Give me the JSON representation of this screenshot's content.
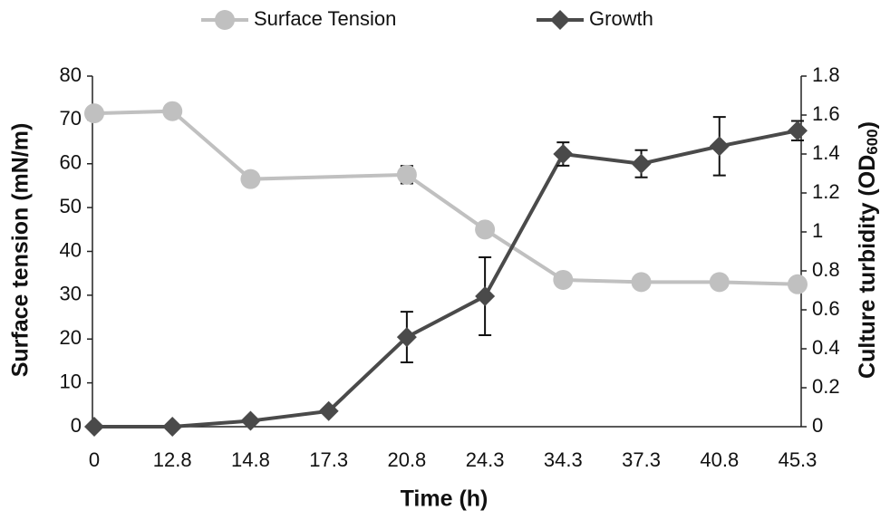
{
  "chart_data": {
    "type": "line",
    "xlabel": "Time (h)",
    "ylabel": "Surface tension (mN/m)",
    "y2label_parts": [
      "Culture turbidity (OD",
      "600",
      ")"
    ],
    "categories": [
      "0",
      "12.8",
      "14.8",
      "17.3",
      "20.8",
      "24.3",
      "34.3",
      "37.3",
      "40.8",
      "45.3"
    ],
    "series": [
      {
        "name": "Surface Tension",
        "color": "#c0c0c0",
        "marker": "circle",
        "values": [
          71.5,
          72,
          56.5,
          null,
          57.5,
          45,
          33.5,
          33,
          33,
          32.5
        ],
        "errors": [
          0,
          0,
          1.5,
          null,
          2,
          0,
          0,
          0,
          0,
          0
        ]
      },
      {
        "name": "Growth",
        "color": "#4a4a4a",
        "marker": "diamond",
        "axis": "y2",
        "values": [
          0,
          0,
          0.03,
          0.08,
          0.46,
          0.67,
          1.4,
          1.35,
          1.44,
          1.52
        ],
        "errors": [
          0,
          0,
          0,
          0,
          0.13,
          0.2,
          0.06,
          0.07,
          0.15,
          0.05
        ]
      }
    ],
    "ylim": [
      0,
      80
    ],
    "yticks": [
      0,
      10,
      20,
      30,
      40,
      50,
      60,
      70,
      80
    ],
    "y2lim": [
      0,
      1.8
    ],
    "y2ticks": [
      0,
      0.2,
      0.4,
      0.6,
      0.8,
      1,
      1.2,
      1.4,
      1.6,
      1.8
    ],
    "legend": "top"
  }
}
